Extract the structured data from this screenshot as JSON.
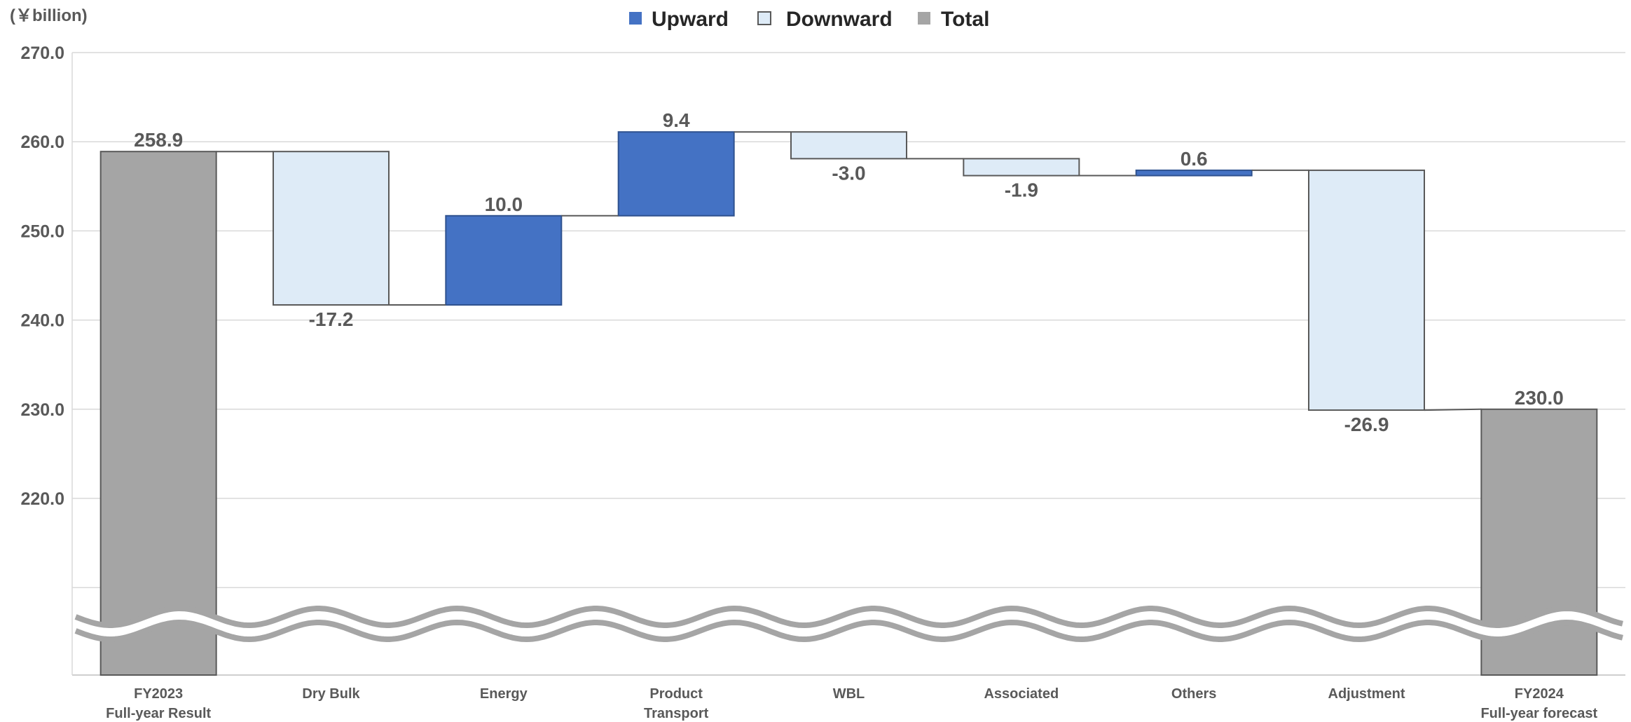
{
  "chart_data": {
    "type": "bar",
    "subtype": "waterfall",
    "unit_label": "(￥billion)",
    "legend": {
      "placement": "top-center",
      "items": [
        {
          "name": "Upward",
          "color": "#4472C4"
        },
        {
          "name": "Downward",
          "color": "#DEEBF7"
        },
        {
          "name": "Total",
          "color": "#A5A5A5"
        }
      ]
    },
    "ylim": [
      210,
      270
    ],
    "yticks": [
      "270.0",
      "260.0",
      "250.0",
      "240.0",
      "230.0",
      "220.0"
    ],
    "axis_break": true,
    "grid": true,
    "categories": [
      [
        "FY2023",
        "Full-year Result"
      ],
      [
        "Dry Bulk"
      ],
      [
        "Energy"
      ],
      [
        "Product",
        "Transport"
      ],
      [
        "WBL"
      ],
      [
        "Associated"
      ],
      [
        "Others"
      ],
      [
        "Adjustment"
      ],
      [
        "FY2024",
        "Full-year forecast"
      ]
    ],
    "bars": [
      {
        "kind": "total",
        "value": 258.9,
        "label": "258.9"
      },
      {
        "kind": "down",
        "value": -17.2,
        "label": "-17.2"
      },
      {
        "kind": "up",
        "value": 10.0,
        "label": "10.0"
      },
      {
        "kind": "up",
        "value": 9.4,
        "label": "9.4"
      },
      {
        "kind": "down",
        "value": -3.0,
        "label": "-3.0"
      },
      {
        "kind": "down",
        "value": -1.9,
        "label": "-1.9"
      },
      {
        "kind": "up",
        "value": 0.6,
        "label": "0.6"
      },
      {
        "kind": "down",
        "value": -26.9,
        "label": "-26.9"
      },
      {
        "kind": "total",
        "value": 230.0,
        "label": "230.0"
      }
    ]
  }
}
